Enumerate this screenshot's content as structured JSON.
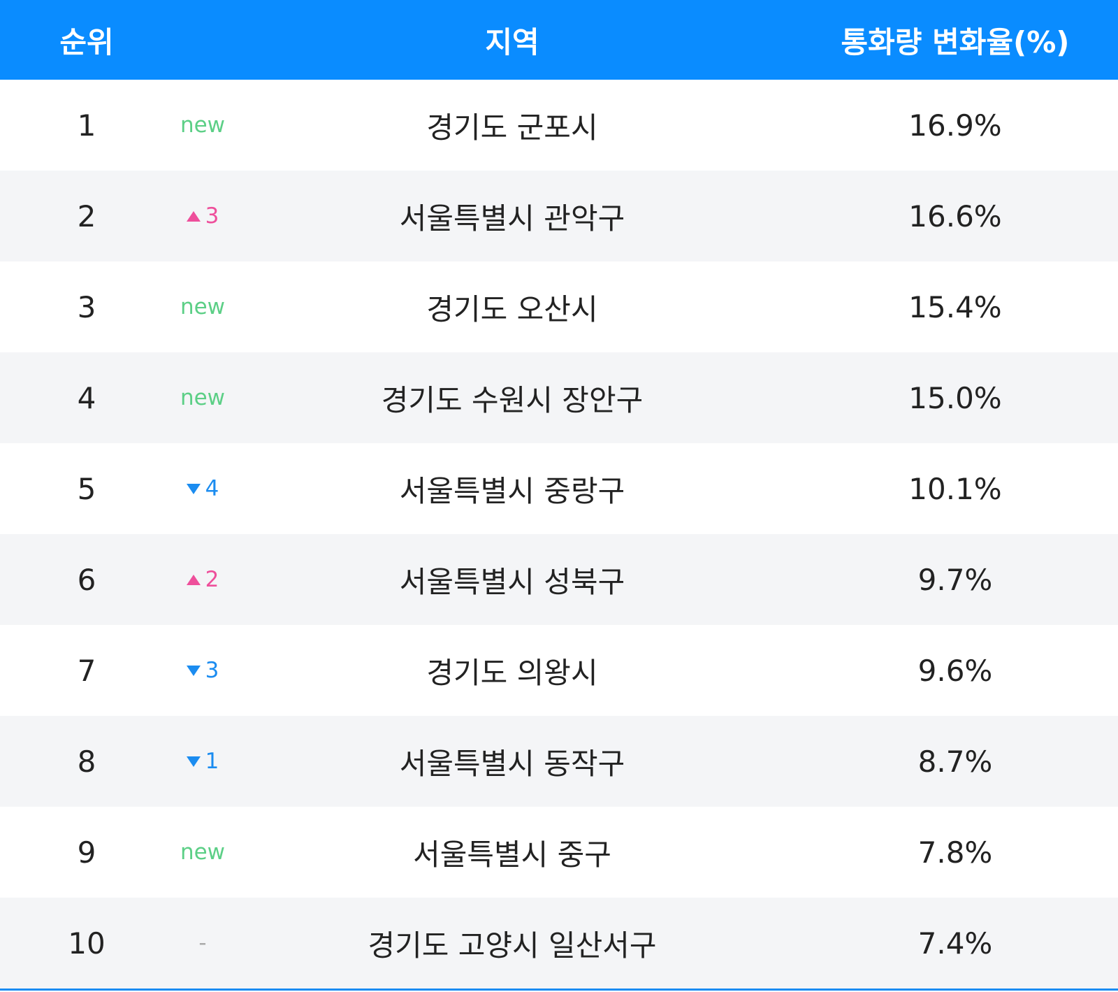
{
  "table": {
    "header": [
      "순위",
      "지역",
      "통화량 변화율(%)"
    ],
    "rows": [
      {
        "rank": 1,
        "change": {
          "status": "new",
          "label": "new"
        },
        "region": "경기도 군포시",
        "rate": "16.9%"
      },
      {
        "rank": 2,
        "change": {
          "status": "up",
          "value": 3
        },
        "region": "서울특별시 관악구",
        "rate": "16.6%"
      },
      {
        "rank": 3,
        "change": {
          "status": "new",
          "label": "new"
        },
        "region": "경기도 오산시",
        "rate": "15.4%"
      },
      {
        "rank": 4,
        "change": {
          "status": "new",
          "label": "new"
        },
        "region": "경기도 수원시 장안구",
        "rate": "15.0%"
      },
      {
        "rank": 5,
        "change": {
          "status": "down",
          "value": 4
        },
        "region": "서울특별시 중랑구",
        "rate": "10.1%"
      },
      {
        "rank": 6,
        "change": {
          "status": "up",
          "value": 2
        },
        "region": "서울특별시 성북구",
        "rate": "9.7%"
      },
      {
        "rank": 7,
        "change": {
          "status": "down",
          "value": 3
        },
        "region": "경기도 의왕시",
        "rate": "9.6%"
      },
      {
        "rank": 8,
        "change": {
          "status": "down",
          "value": 1
        },
        "region": "서울특별시 동작구",
        "rate": "8.7%"
      },
      {
        "rank": 9,
        "change": {
          "status": "new",
          "label": "new"
        },
        "region": "서울특별시 중구",
        "rate": "7.8%"
      },
      {
        "rank": 10,
        "change": {
          "status": "same",
          "label": "-"
        },
        "region": "경기도 고양시 일산서구",
        "rate": "7.4%"
      }
    ]
  }
}
